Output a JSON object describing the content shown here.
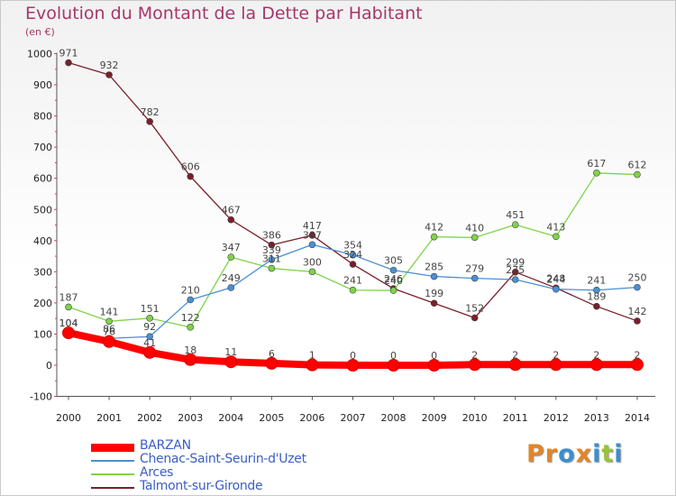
{
  "chart_data": {
    "type": "line",
    "title": "Evolution du Montant de la Dette par Habitant",
    "subtitle": "(en €)",
    "x": [
      "2000",
      "2001",
      "2002",
      "2003",
      "2004",
      "2005",
      "2006",
      "2007",
      "2008",
      "2009",
      "2010",
      "2011",
      "2012",
      "2013",
      "2014"
    ],
    "ylim": [
      -100,
      1000
    ],
    "yticks": [
      "-100",
      "0",
      "100",
      "200",
      "300",
      "400",
      "500",
      "600",
      "700",
      "800",
      "900",
      "1000"
    ],
    "grid": false,
    "legend_position": "bottom-left",
    "series": [
      {
        "name": "BARZAN",
        "color": "#ff0000",
        "values": [
          104,
          76,
          41,
          18,
          11,
          6,
          1,
          0,
          0,
          0,
          2,
          2,
          2,
          2,
          2
        ]
      },
      {
        "name": "Chenac-Saint-Seurin-d'Uzet",
        "color": "#4a8fd4",
        "values": [
          104,
          86,
          92,
          210,
          249,
          339,
          387,
          354,
          305,
          285,
          279,
          275,
          244,
          241,
          250
        ]
      },
      {
        "name": "Arces",
        "color": "#7ed44a",
        "values": [
          187,
          141,
          151,
          122,
          347,
          311,
          300,
          241,
          240,
          412,
          410,
          451,
          413,
          617,
          612
        ]
      },
      {
        "name": "Talmont-sur-Gironde",
        "color": "#7a1f2a",
        "values": [
          971,
          932,
          782,
          606,
          467,
          386,
          417,
          324,
          246,
          199,
          152,
          299,
          248,
          189,
          142
        ]
      }
    ]
  },
  "logo": {
    "text": "Proxiti",
    "colors": [
      "#e0862a",
      "#e0862a",
      "#3a8fd0",
      "#e0862a",
      "#3a8fd0",
      "#9ac23a",
      "#3a8fd0"
    ]
  }
}
